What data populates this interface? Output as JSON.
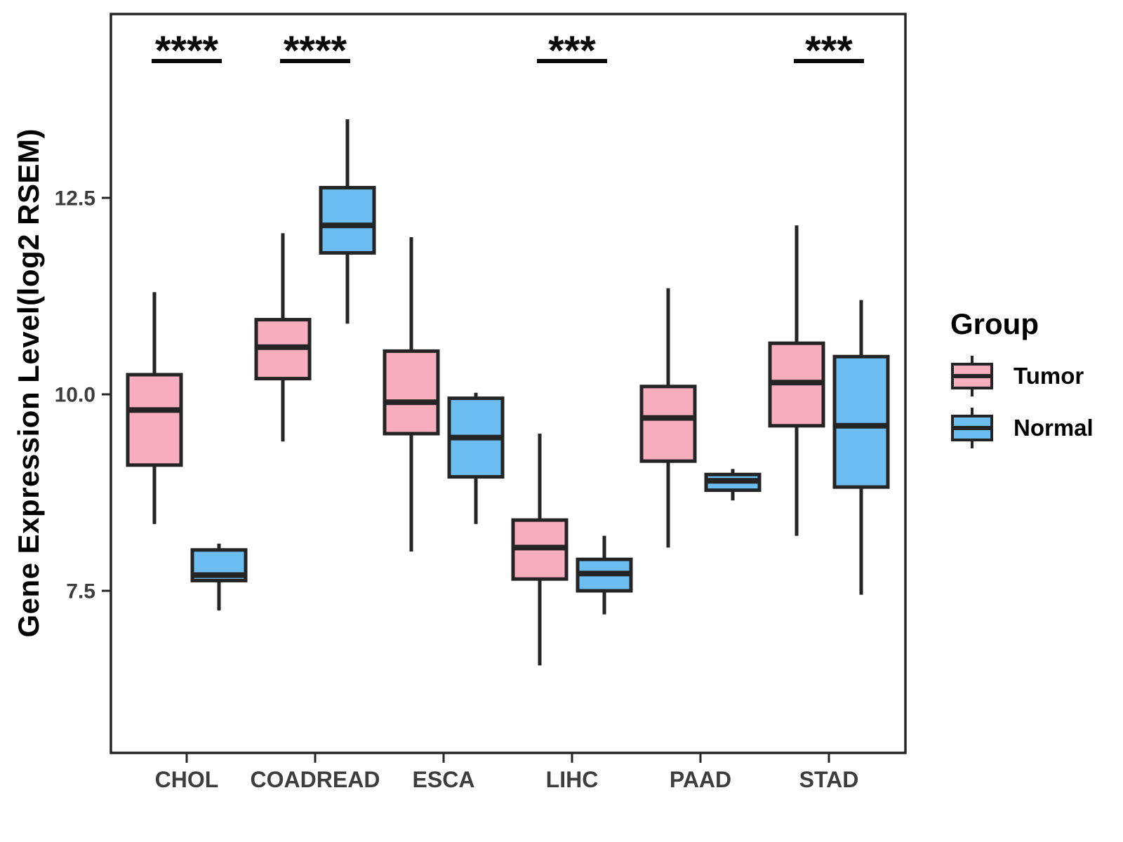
{
  "chart_data": {
    "type": "boxplot",
    "title": "",
    "xlabel": "",
    "ylabel": "Gene Expression Level(log2 RSEM)",
    "categories": [
      "CHOL",
      "COADREAD",
      "ESCA",
      "LIHC",
      "PAAD",
      "STAD"
    ],
    "y_axis": {
      "ticks": [
        {
          "value": 12.5,
          "label": "12.5"
        },
        {
          "value": 10.0,
          "label": "10.0"
        },
        {
          "value": 7.5,
          "label": "7.5"
        }
      ],
      "domain": [
        5.44,
        14.84
      ],
      "grid": false
    },
    "series": [
      {
        "name": "Tumor",
        "color": "#F9AEC0",
        "boxes": [
          {
            "category": "CHOL",
            "min": 8.35,
            "q1": 9.1,
            "median": 9.8,
            "q3": 10.25,
            "max": 11.3
          },
          {
            "category": "COADREAD",
            "min": 9.4,
            "q1": 10.2,
            "median": 10.6,
            "q3": 10.95,
            "max": 12.05
          },
          {
            "category": "ESCA",
            "min": 8.0,
            "q1": 9.5,
            "median": 9.9,
            "q3": 10.55,
            "max": 12.0
          },
          {
            "category": "LIHC",
            "min": 6.55,
            "q1": 7.65,
            "median": 8.05,
            "q3": 8.4,
            "max": 9.5
          },
          {
            "category": "PAAD",
            "min": 8.05,
            "q1": 9.15,
            "median": 9.7,
            "q3": 10.1,
            "max": 11.35
          },
          {
            "category": "STAD",
            "min": 8.2,
            "q1": 9.6,
            "median": 10.15,
            "q3": 10.65,
            "max": 12.15
          }
        ]
      },
      {
        "name": "Normal",
        "color": "#6CBDF1",
        "boxes": [
          {
            "category": "CHOL",
            "min": 7.25,
            "q1": 7.63,
            "median": 7.7,
            "q3": 8.02,
            "max": 8.1
          },
          {
            "category": "COADREAD",
            "min": 10.9,
            "q1": 11.8,
            "median": 12.15,
            "q3": 12.63,
            "max": 13.5
          },
          {
            "category": "ESCA",
            "min": 8.35,
            "q1": 8.95,
            "median": 9.45,
            "q3": 9.95,
            "max": 10.02
          },
          {
            "category": "LIHC",
            "min": 7.2,
            "q1": 7.5,
            "median": 7.72,
            "q3": 7.9,
            "max": 8.2
          },
          {
            "category": "PAAD",
            "min": 8.65,
            "q1": 8.78,
            "median": 8.9,
            "q3": 8.98,
            "max": 9.05
          },
          {
            "category": "STAD",
            "min": 7.45,
            "q1": 8.82,
            "median": 9.6,
            "q3": 10.48,
            "max": 11.2
          }
        ]
      }
    ],
    "annotations": [
      {
        "category": "CHOL",
        "label": "****"
      },
      {
        "category": "COADREAD",
        "label": "****"
      },
      {
        "category": "LIHC",
        "label": "***"
      },
      {
        "category": "STAD",
        "label": "***"
      }
    ],
    "legend": {
      "title": "Group",
      "position": "right",
      "items": [
        {
          "label": "Tumor",
          "color": "#F9AEC0"
        },
        {
          "label": "Normal",
          "color": "#6CBDF1"
        }
      ]
    },
    "colors": {
      "box_stroke": "#242424",
      "panel_border": "#262626",
      "tick_text": "#3d3d3d",
      "annotation": "#0a0a0a"
    }
  }
}
